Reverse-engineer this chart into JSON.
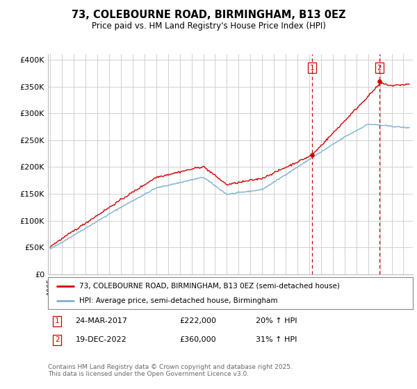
{
  "title": "73, COLEBOURNE ROAD, BIRMINGHAM, B13 0EZ",
  "subtitle": "Price paid vs. HM Land Registry's House Price Index (HPI)",
  "ylabel_ticks": [
    "£0",
    "£50K",
    "£100K",
    "£150K",
    "£200K",
    "£250K",
    "£300K",
    "£350K",
    "£400K"
  ],
  "ytick_vals": [
    0,
    50000,
    100000,
    150000,
    200000,
    250000,
    300000,
    350000,
    400000
  ],
  "ylim": [
    0,
    410000
  ],
  "legend_line1": "73, COLEBOURNE ROAD, BIRMINGHAM, B13 0EZ (semi-detached house)",
  "legend_line2": "HPI: Average price, semi-detached house, Birmingham",
  "annotation1_date": "24-MAR-2017",
  "annotation1_price": "£222,000",
  "annotation1_change": "20% ↑ HPI",
  "annotation2_date": "19-DEC-2022",
  "annotation2_price": "£360,000",
  "annotation2_change": "31% ↑ HPI",
  "footer": "Contains HM Land Registry data © Crown copyright and database right 2025.\nThis data is licensed under the Open Government Licence v3.0.",
  "line_color_red": "#cc0000",
  "line_color_blue": "#7ab0d4",
  "annotation_color": "#cc0000",
  "background_color": "#ffffff",
  "grid_color": "#d0d0d0",
  "marker1_year": 2017.22,
  "marker1_value": 222000,
  "marker2_year": 2022.96,
  "marker2_value": 360000
}
